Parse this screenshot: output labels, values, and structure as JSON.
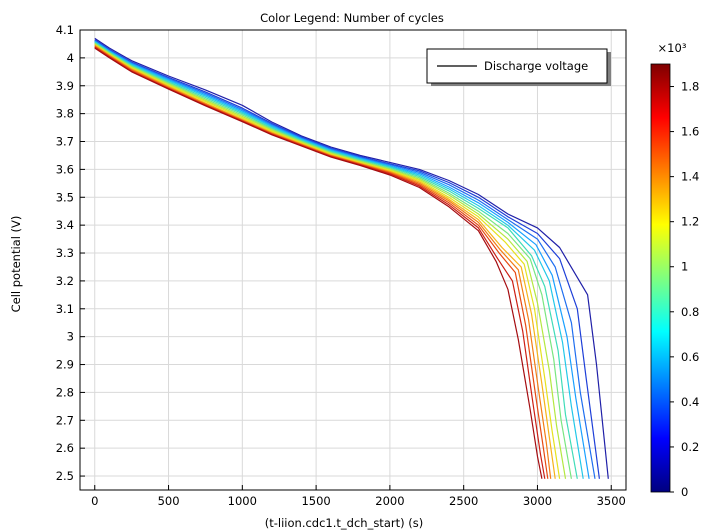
{
  "chart_data": {
    "type": "line",
    "title": "Color Legend: Number of cycles",
    "xlabel": "(t-liion.cdc1.t_dch_start) (s)",
    "ylabel": "Cell potential (V)",
    "xlim": [
      -100,
      3600
    ],
    "ylim": [
      2.45,
      4.1
    ],
    "xticks": [
      "0",
      "500",
      "1000",
      "1500",
      "2000",
      "2500",
      "3000",
      "3500"
    ],
    "yticks": [
      "2.5",
      "2.6",
      "2.7",
      "2.8",
      "2.9",
      "3",
      "3.1",
      "3.2",
      "3.3",
      "3.4",
      "3.5",
      "3.6",
      "3.7",
      "3.8",
      "3.9",
      "4",
      "4.1"
    ],
    "grid": true,
    "legend": {
      "position": "top-right",
      "entries": [
        "Discharge voltage"
      ]
    },
    "colorbar": {
      "label_multiplier": "×10³",
      "range": [
        0,
        1.9
      ],
      "ticks": [
        "0",
        "0.2",
        "0.4",
        "0.6",
        "0.8",
        "1",
        "1.2",
        "1.4",
        "1.6",
        "1.8"
      ],
      "colormap": [
        "#00007f",
        "#0000ff",
        "#007fff",
        "#00ffff",
        "#7fff7f",
        "#ffff00",
        "#ff7f00",
        "#ff0000",
        "#7f0000"
      ]
    },
    "series_colors": [
      "#2020a8",
      "#1e3fd8",
      "#1f6ef0",
      "#1aa0ff",
      "#22c8e8",
      "#3fdcb8",
      "#78e680",
      "#b4e840",
      "#e6e21e",
      "#f6b31a",
      "#f27d15",
      "#e64a12",
      "#cc1f14",
      "#a50c10"
    ],
    "series": [
      {
        "values": [
          [
            0,
            4.07
          ],
          [
            100,
            4.035
          ],
          [
            250,
            3.99
          ],
          [
            500,
            3.935
          ],
          [
            750,
            3.885
          ],
          [
            1000,
            3.83
          ],
          [
            1200,
            3.77
          ],
          [
            1400,
            3.72
          ],
          [
            1600,
            3.68
          ],
          [
            1800,
            3.65
          ],
          [
            2000,
            3.625
          ],
          [
            2200,
            3.6
          ],
          [
            2400,
            3.56
          ],
          [
            2600,
            3.51
          ],
          [
            2800,
            3.44
          ],
          [
            3000,
            3.39
          ],
          [
            3150,
            3.32
          ],
          [
            3340,
            3.15
          ],
          [
            3400,
            2.9
          ],
          [
            3480,
            2.49
          ]
        ]
      },
      {
        "values": [
          [
            0,
            4.065
          ],
          [
            100,
            4.03
          ],
          [
            250,
            3.985
          ],
          [
            500,
            3.93
          ],
          [
            750,
            3.878
          ],
          [
            1000,
            3.82
          ],
          [
            1200,
            3.765
          ],
          [
            1400,
            3.716
          ],
          [
            1600,
            3.676
          ],
          [
            1800,
            3.646
          ],
          [
            2000,
            3.62
          ],
          [
            2200,
            3.595
          ],
          [
            2400,
            3.553
          ],
          [
            2600,
            3.5
          ],
          [
            2800,
            3.43
          ],
          [
            3000,
            3.37
          ],
          [
            3150,
            3.28
          ],
          [
            3270,
            3.1
          ],
          [
            3330,
            2.85
          ],
          [
            3420,
            2.49
          ]
        ]
      },
      {
        "values": [
          [
            0,
            4.062
          ],
          [
            100,
            4.027
          ],
          [
            250,
            3.982
          ],
          [
            500,
            3.926
          ],
          [
            750,
            3.873
          ],
          [
            1000,
            3.815
          ],
          [
            1200,
            3.761
          ],
          [
            1400,
            3.713
          ],
          [
            1600,
            3.673
          ],
          [
            1800,
            3.643
          ],
          [
            2000,
            3.617
          ],
          [
            2200,
            3.59
          ],
          [
            2400,
            3.545
          ],
          [
            2600,
            3.49
          ],
          [
            2800,
            3.42
          ],
          [
            3000,
            3.35
          ],
          [
            3120,
            3.25
          ],
          [
            3230,
            3.05
          ],
          [
            3290,
            2.8
          ],
          [
            3390,
            2.49
          ]
        ]
      },
      {
        "values": [
          [
            0,
            4.06
          ],
          [
            100,
            4.025
          ],
          [
            250,
            3.979
          ],
          [
            500,
            3.922
          ],
          [
            750,
            3.868
          ],
          [
            1000,
            3.81
          ],
          [
            1200,
            3.757
          ],
          [
            1400,
            3.71
          ],
          [
            1600,
            3.67
          ],
          [
            1800,
            3.64
          ],
          [
            2000,
            3.613
          ],
          [
            2200,
            3.585
          ],
          [
            2400,
            3.537
          ],
          [
            2600,
            3.48
          ],
          [
            2800,
            3.41
          ],
          [
            2990,
            3.33
          ],
          [
            3100,
            3.22
          ],
          [
            3200,
            3.0
          ],
          [
            3260,
            2.78
          ],
          [
            3350,
            2.49
          ]
        ]
      },
      {
        "values": [
          [
            0,
            4.058
          ],
          [
            100,
            4.022
          ],
          [
            250,
            3.976
          ],
          [
            500,
            3.918
          ],
          [
            750,
            3.863
          ],
          [
            1000,
            3.805
          ],
          [
            1200,
            3.753
          ],
          [
            1400,
            3.707
          ],
          [
            1600,
            3.667
          ],
          [
            1800,
            3.637
          ],
          [
            2000,
            3.61
          ],
          [
            2200,
            3.58
          ],
          [
            2400,
            3.53
          ],
          [
            2600,
            3.47
          ],
          [
            2800,
            3.4
          ],
          [
            2980,
            3.31
          ],
          [
            3080,
            3.2
          ],
          [
            3170,
            2.98
          ],
          [
            3230,
            2.75
          ],
          [
            3310,
            2.49
          ]
        ]
      },
      {
        "values": [
          [
            0,
            4.055
          ],
          [
            100,
            4.02
          ],
          [
            250,
            3.973
          ],
          [
            500,
            3.914
          ],
          [
            750,
            3.858
          ],
          [
            1000,
            3.8
          ],
          [
            1200,
            3.749
          ],
          [
            1400,
            3.704
          ],
          [
            1600,
            3.664
          ],
          [
            1800,
            3.634
          ],
          [
            2000,
            3.607
          ],
          [
            2200,
            3.575
          ],
          [
            2400,
            3.523
          ],
          [
            2600,
            3.46
          ],
          [
            2800,
            3.39
          ],
          [
            2960,
            3.29
          ],
          [
            3050,
            3.18
          ],
          [
            3140,
            2.95
          ],
          [
            3190,
            2.72
          ],
          [
            3270,
            2.49
          ]
        ]
      },
      {
        "values": [
          [
            0,
            4.053
          ],
          [
            100,
            4.018
          ],
          [
            250,
            3.97
          ],
          [
            500,
            3.91
          ],
          [
            750,
            3.853
          ],
          [
            1000,
            3.795
          ],
          [
            1200,
            3.745
          ],
          [
            1400,
            3.701
          ],
          [
            1600,
            3.661
          ],
          [
            1800,
            3.631
          ],
          [
            2000,
            3.603
          ],
          [
            2200,
            3.57
          ],
          [
            2400,
            3.515
          ],
          [
            2600,
            3.45
          ],
          [
            2800,
            3.37
          ],
          [
            2950,
            3.28
          ],
          [
            3030,
            3.15
          ],
          [
            3110,
            2.92
          ],
          [
            3160,
            2.7
          ],
          [
            3230,
            2.49
          ]
        ]
      },
      {
        "values": [
          [
            0,
            4.05
          ],
          [
            100,
            4.015
          ],
          [
            250,
            3.967
          ],
          [
            500,
            3.906
          ],
          [
            750,
            3.848
          ],
          [
            1000,
            3.79
          ],
          [
            1200,
            3.741
          ],
          [
            1400,
            3.698
          ],
          [
            1600,
            3.658
          ],
          [
            1800,
            3.628
          ],
          [
            2000,
            3.6
          ],
          [
            2200,
            3.565
          ],
          [
            2400,
            3.508
          ],
          [
            2600,
            3.44
          ],
          [
            2800,
            3.35
          ],
          [
            2930,
            3.27
          ],
          [
            3000,
            3.12
          ],
          [
            3080,
            2.88
          ],
          [
            3130,
            2.68
          ],
          [
            3190,
            2.49
          ]
        ]
      },
      {
        "values": [
          [
            0,
            4.048
          ],
          [
            100,
            4.012
          ],
          [
            250,
            3.964
          ],
          [
            500,
            3.902
          ],
          [
            750,
            3.843
          ],
          [
            1000,
            3.785
          ],
          [
            1200,
            3.737
          ],
          [
            1400,
            3.695
          ],
          [
            1600,
            3.655
          ],
          [
            1800,
            3.625
          ],
          [
            2000,
            3.596
          ],
          [
            2200,
            3.56
          ],
          [
            2400,
            3.5
          ],
          [
            2600,
            3.43
          ],
          [
            2780,
            3.34
          ],
          [
            2910,
            3.26
          ],
          [
            2980,
            3.1
          ],
          [
            3050,
            2.85
          ],
          [
            3100,
            2.66
          ],
          [
            3150,
            2.49
          ]
        ]
      },
      {
        "values": [
          [
            0,
            4.045
          ],
          [
            100,
            4.01
          ],
          [
            250,
            3.961
          ],
          [
            500,
            3.898
          ],
          [
            750,
            3.838
          ],
          [
            1000,
            3.78
          ],
          [
            1200,
            3.733
          ],
          [
            1400,
            3.692
          ],
          [
            1600,
            3.652
          ],
          [
            1800,
            3.622
          ],
          [
            2000,
            3.593
          ],
          [
            2200,
            3.555
          ],
          [
            2400,
            3.493
          ],
          [
            2600,
            3.42
          ],
          [
            2760,
            3.32
          ],
          [
            2890,
            3.25
          ],
          [
            2960,
            3.08
          ],
          [
            3030,
            2.83
          ],
          [
            3080,
            2.64
          ],
          [
            3120,
            2.49
          ]
        ]
      },
      {
        "values": [
          [
            0,
            4.043
          ],
          [
            100,
            4.008
          ],
          [
            250,
            3.958
          ],
          [
            500,
            3.895
          ],
          [
            750,
            3.835
          ],
          [
            1000,
            3.777
          ],
          [
            1200,
            3.73
          ],
          [
            1400,
            3.69
          ],
          [
            1600,
            3.65
          ],
          [
            1800,
            3.62
          ],
          [
            2000,
            3.59
          ],
          [
            2200,
            3.55
          ],
          [
            2400,
            3.487
          ],
          [
            2600,
            3.41
          ],
          [
            2750,
            3.31
          ],
          [
            2870,
            3.24
          ],
          [
            2940,
            3.06
          ],
          [
            3010,
            2.8
          ],
          [
            3060,
            2.62
          ],
          [
            3090,
            2.49
          ]
        ]
      },
      {
        "values": [
          [
            0,
            4.04
          ],
          [
            100,
            4.005
          ],
          [
            250,
            3.955
          ],
          [
            500,
            3.892
          ],
          [
            750,
            3.832
          ],
          [
            1000,
            3.775
          ],
          [
            1200,
            3.728
          ],
          [
            1400,
            3.688
          ],
          [
            1600,
            3.648
          ],
          [
            1800,
            3.618
          ],
          [
            2000,
            3.587
          ],
          [
            2200,
            3.545
          ],
          [
            2400,
            3.48
          ],
          [
            2600,
            3.4
          ],
          [
            2740,
            3.3
          ],
          [
            2850,
            3.23
          ],
          [
            2920,
            3.04
          ],
          [
            2990,
            2.78
          ],
          [
            3040,
            2.6
          ],
          [
            3070,
            2.49
          ]
        ]
      },
      {
        "values": [
          [
            0,
            4.038
          ],
          [
            100,
            4.003
          ],
          [
            250,
            3.952
          ],
          [
            500,
            3.89
          ],
          [
            750,
            3.83
          ],
          [
            1000,
            3.773
          ],
          [
            1200,
            3.726
          ],
          [
            1400,
            3.686
          ],
          [
            1600,
            3.646
          ],
          [
            1800,
            3.616
          ],
          [
            2000,
            3.584
          ],
          [
            2200,
            3.54
          ],
          [
            2400,
            3.473
          ],
          [
            2600,
            3.39
          ],
          [
            2730,
            3.28
          ],
          [
            2830,
            3.2
          ],
          [
            2900,
            3.02
          ],
          [
            2970,
            2.76
          ],
          [
            3020,
            2.58
          ],
          [
            3050,
            2.49
          ]
        ]
      },
      {
        "values": [
          [
            0,
            4.035
          ],
          [
            100,
            4.0
          ],
          [
            250,
            3.95
          ],
          [
            500,
            3.888
          ],
          [
            750,
            3.828
          ],
          [
            1000,
            3.771
          ],
          [
            1200,
            3.724
          ],
          [
            1400,
            3.684
          ],
          [
            1600,
            3.644
          ],
          [
            1800,
            3.614
          ],
          [
            2000,
            3.58
          ],
          [
            2200,
            3.535
          ],
          [
            2400,
            3.466
          ],
          [
            2600,
            3.38
          ],
          [
            2720,
            3.27
          ],
          [
            2800,
            3.17
          ],
          [
            2870,
            2.99
          ],
          [
            2950,
            2.74
          ],
          [
            3000,
            2.57
          ],
          [
            3030,
            2.49
          ]
        ]
      }
    ]
  }
}
